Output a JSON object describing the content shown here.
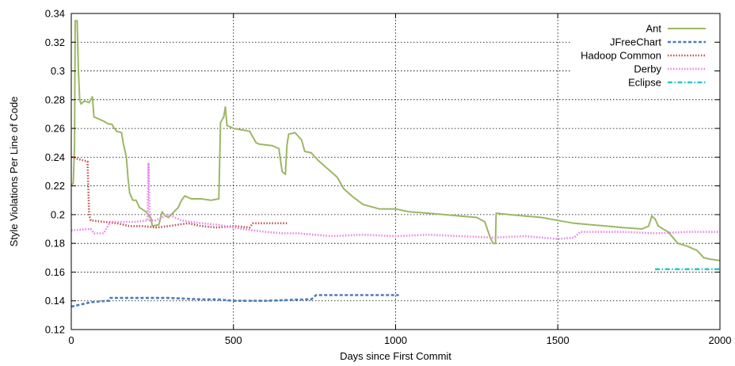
{
  "chart_data": {
    "type": "line",
    "title": "",
    "xlabel": "Days since First Commit",
    "ylabel": "Style Violations Per Line of Code",
    "xlim": [
      0,
      2000
    ],
    "ylim": [
      0.12,
      0.34
    ],
    "xticks": [
      0,
      500,
      1000,
      1500,
      2000
    ],
    "yticks": [
      0.12,
      0.14,
      0.16,
      0.18,
      0.2,
      0.22,
      0.24,
      0.26,
      0.28,
      0.3,
      0.32,
      0.34
    ],
    "grid": true,
    "legend_position": "top-right",
    "series": [
      {
        "name": "Ant",
        "color": "#9cb765",
        "style": "solid",
        "points": [
          [
            0,
            0.22
          ],
          [
            6,
            0.222
          ],
          [
            10,
            0.248
          ],
          [
            12,
            0.335
          ],
          [
            18,
            0.335
          ],
          [
            22,
            0.3
          ],
          [
            26,
            0.28
          ],
          [
            30,
            0.277
          ],
          [
            40,
            0.279
          ],
          [
            55,
            0.278
          ],
          [
            65,
            0.282
          ],
          [
            70,
            0.268
          ],
          [
            100,
            0.265
          ],
          [
            115,
            0.263
          ],
          [
            125,
            0.263
          ],
          [
            130,
            0.261
          ],
          [
            140,
            0.258
          ],
          [
            155,
            0.257
          ],
          [
            160,
            0.25
          ],
          [
            170,
            0.24
          ],
          [
            175,
            0.225
          ],
          [
            180,
            0.215
          ],
          [
            190,
            0.21
          ],
          [
            200,
            0.21
          ],
          [
            210,
            0.205
          ],
          [
            230,
            0.202
          ],
          [
            245,
            0.198
          ],
          [
            250,
            0.192
          ],
          [
            270,
            0.193
          ],
          [
            280,
            0.202
          ],
          [
            290,
            0.199
          ],
          [
            300,
            0.198
          ],
          [
            330,
            0.205
          ],
          [
            340,
            0.21
          ],
          [
            350,
            0.213
          ],
          [
            370,
            0.211
          ],
          [
            400,
            0.211
          ],
          [
            430,
            0.21
          ],
          [
            455,
            0.211
          ],
          [
            460,
            0.264
          ],
          [
            470,
            0.268
          ],
          [
            475,
            0.275
          ],
          [
            480,
            0.262
          ],
          [
            500,
            0.26
          ],
          [
            550,
            0.258
          ],
          [
            570,
            0.25
          ],
          [
            580,
            0.249
          ],
          [
            620,
            0.248
          ],
          [
            640,
            0.246
          ],
          [
            650,
            0.23
          ],
          [
            660,
            0.228
          ],
          [
            665,
            0.248
          ],
          [
            670,
            0.256
          ],
          [
            690,
            0.257
          ],
          [
            710,
            0.252
          ],
          [
            720,
            0.244
          ],
          [
            740,
            0.243
          ],
          [
            760,
            0.238
          ],
          [
            790,
            0.232
          ],
          [
            820,
            0.226
          ],
          [
            840,
            0.218
          ],
          [
            870,
            0.212
          ],
          [
            900,
            0.207
          ],
          [
            950,
            0.204
          ],
          [
            1000,
            0.204
          ],
          [
            1040,
            0.202
          ],
          [
            1100,
            0.201
          ],
          [
            1150,
            0.2
          ],
          [
            1200,
            0.199
          ],
          [
            1250,
            0.198
          ],
          [
            1275,
            0.195
          ],
          [
            1290,
            0.185
          ],
          [
            1300,
            0.18
          ],
          [
            1308,
            0.18
          ],
          [
            1310,
            0.201
          ],
          [
            1350,
            0.2
          ],
          [
            1400,
            0.199
          ],
          [
            1450,
            0.198
          ],
          [
            1500,
            0.196
          ],
          [
            1550,
            0.194
          ],
          [
            1600,
            0.193
          ],
          [
            1650,
            0.192
          ],
          [
            1700,
            0.191
          ],
          [
            1760,
            0.19
          ],
          [
            1780,
            0.192
          ],
          [
            1790,
            0.199
          ],
          [
            1800,
            0.197
          ],
          [
            1810,
            0.192
          ],
          [
            1840,
            0.188
          ],
          [
            1870,
            0.18
          ],
          [
            1900,
            0.178
          ],
          [
            1930,
            0.175
          ],
          [
            1950,
            0.17
          ],
          [
            1970,
            0.169
          ],
          [
            2000,
            0.168
          ]
        ]
      },
      {
        "name": "JFreeChart",
        "color": "#4a7dbb",
        "style": "dashed",
        "points": [
          [
            0,
            0.136
          ],
          [
            20,
            0.137
          ],
          [
            60,
            0.139
          ],
          [
            110,
            0.14
          ],
          [
            118,
            0.14
          ],
          [
            120,
            0.142
          ],
          [
            200,
            0.142
          ],
          [
            300,
            0.142
          ],
          [
            400,
            0.141
          ],
          [
            450,
            0.141
          ],
          [
            500,
            0.14
          ],
          [
            600,
            0.14
          ],
          [
            720,
            0.141
          ],
          [
            740,
            0.141
          ],
          [
            755,
            0.144
          ],
          [
            850,
            0.144
          ],
          [
            1010,
            0.144
          ]
        ]
      },
      {
        "name": "Hadoop Common",
        "color": "#c0504d",
        "style": "dotted",
        "points": [
          [
            0,
            0.24
          ],
          [
            50,
            0.237
          ],
          [
            55,
            0.2
          ],
          [
            60,
            0.196
          ],
          [
            100,
            0.195
          ],
          [
            140,
            0.194
          ],
          [
            180,
            0.192
          ],
          [
            220,
            0.192
          ],
          [
            260,
            0.191
          ],
          [
            300,
            0.192
          ],
          [
            330,
            0.193
          ],
          [
            360,
            0.194
          ],
          [
            400,
            0.192
          ],
          [
            450,
            0.191
          ],
          [
            500,
            0.192
          ],
          [
            550,
            0.191
          ],
          [
            560,
            0.194
          ],
          [
            600,
            0.194
          ],
          [
            670,
            0.194
          ]
        ]
      },
      {
        "name": "Derby",
        "color": "#e680e6",
        "style": "dotted",
        "points": [
          [
            0,
            0.189
          ],
          [
            60,
            0.19
          ],
          [
            70,
            0.187
          ],
          [
            100,
            0.187
          ],
          [
            120,
            0.195
          ],
          [
            200,
            0.195
          ],
          [
            235,
            0.196
          ],
          [
            238,
            0.236
          ],
          [
            242,
            0.196
          ],
          [
            260,
            0.196
          ],
          [
            300,
            0.2
          ],
          [
            340,
            0.196
          ],
          [
            400,
            0.194
          ],
          [
            450,
            0.193
          ],
          [
            500,
            0.191
          ],
          [
            560,
            0.189
          ],
          [
            600,
            0.188
          ],
          [
            650,
            0.187
          ],
          [
            700,
            0.187
          ],
          [
            800,
            0.185
          ],
          [
            900,
            0.186
          ],
          [
            1000,
            0.185
          ],
          [
            1100,
            0.186
          ],
          [
            1200,
            0.185
          ],
          [
            1300,
            0.184
          ],
          [
            1400,
            0.185
          ],
          [
            1500,
            0.183
          ],
          [
            1550,
            0.184
          ],
          [
            1570,
            0.188
          ],
          [
            1700,
            0.188
          ],
          [
            1800,
            0.187
          ],
          [
            1900,
            0.188
          ],
          [
            2000,
            0.188
          ]
        ]
      },
      {
        "name": "Eclipse",
        "color": "#31c5c5",
        "style": "dashdot",
        "points": [
          [
            1800,
            0.162
          ],
          [
            2000,
            0.162
          ]
        ]
      }
    ]
  }
}
